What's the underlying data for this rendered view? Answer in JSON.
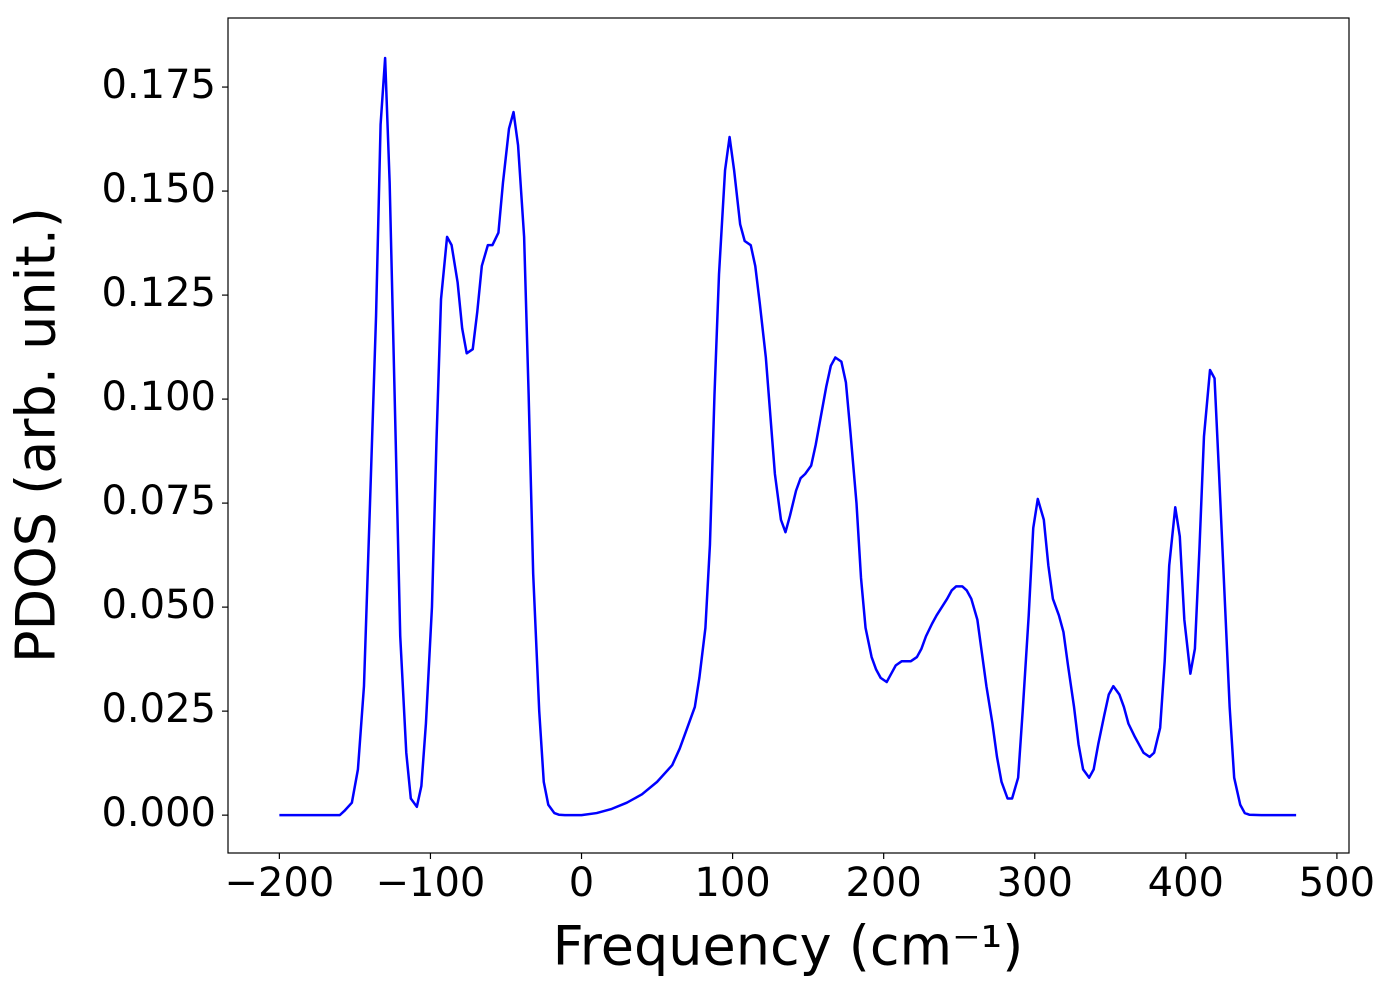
{
  "chart_data": {
    "type": "line",
    "xlabel": "Frequency (cm⁻¹)",
    "ylabel": "PDOS (arb. unit.)",
    "series": [
      {
        "color": "#0000ff",
        "x": [
          -200,
          -190,
          -180,
          -170,
          -160,
          -157,
          -152,
          -148,
          -144,
          -140,
          -136,
          -133,
          -130,
          -127,
          -123,
          -120,
          -116,
          -113,
          -109,
          -106,
          -103,
          -99,
          -96,
          -93,
          -89,
          -86,
          -82,
          -79,
          -76,
          -72,
          -69,
          -66,
          -62,
          -59,
          -55,
          -52,
          -48,
          -45,
          -42,
          -38,
          -35,
          -32,
          -28,
          -25,
          -22,
          -18,
          -15,
          -11,
          0,
          10,
          20,
          30,
          40,
          50,
          60,
          65,
          70,
          75,
          78,
          82,
          85,
          88,
          91,
          95,
          98,
          101,
          105,
          108,
          112,
          115,
          118,
          122,
          125,
          128,
          132,
          135,
          138,
          142,
          145,
          148,
          152,
          155,
          158,
          162,
          165,
          168,
          172,
          175,
          178,
          182,
          185,
          188,
          192,
          195,
          198,
          202,
          205,
          208,
          212,
          215,
          218,
          222,
          225,
          228,
          232,
          235,
          242,
          245,
          248,
          252,
          255,
          258,
          262,
          265,
          268,
          272,
          275,
          278,
          282,
          285,
          289,
          292,
          296,
          299,
          302,
          306,
          309,
          312,
          316,
          319,
          322,
          326,
          329,
          332,
          336,
          339,
          342,
          346,
          349,
          352,
          356,
          359,
          362,
          366,
          369,
          372,
          376,
          379,
          383,
          386,
          389,
          393,
          396,
          399,
          403,
          406,
          409,
          412,
          416,
          419,
          422,
          426,
          429,
          432,
          436,
          439,
          442,
          450,
          460,
          473
        ],
        "values": [
          0,
          0,
          0,
          0,
          0,
          0.001,
          0.003,
          0.011,
          0.031,
          0.075,
          0.12,
          0.166,
          0.182,
          0.152,
          0.09,
          0.043,
          0.015,
          0.004,
          0.002,
          0.007,
          0.022,
          0.05,
          0.09,
          0.124,
          0.139,
          0.137,
          0.128,
          0.117,
          0.111,
          0.112,
          0.121,
          0.132,
          0.137,
          0.137,
          0.14,
          0.152,
          0.165,
          0.169,
          0.161,
          0.139,
          0.101,
          0.058,
          0.025,
          0.008,
          0.0025,
          0.0005,
          0.0001,
          0,
          0,
          0.0005,
          0.0015,
          0.003,
          0.005,
          0.008,
          0.012,
          0.016,
          0.021,
          0.026,
          0.033,
          0.045,
          0.065,
          0.101,
          0.13,
          0.155,
          0.163,
          0.155,
          0.142,
          0.138,
          0.137,
          0.132,
          0.123,
          0.11,
          0.096,
          0.082,
          0.071,
          0.068,
          0.072,
          0.078,
          0.081,
          0.082,
          0.084,
          0.089,
          0.095,
          0.103,
          0.108,
          0.11,
          0.109,
          0.104,
          0.092,
          0.075,
          0.057,
          0.045,
          0.038,
          0.035,
          0.033,
          0.032,
          0.034,
          0.036,
          0.037,
          0.037,
          0.037,
          0.038,
          0.04,
          0.043,
          0.046,
          0.048,
          0.052,
          0.054,
          0.055,
          0.055,
          0.054,
          0.052,
          0.047,
          0.039,
          0.031,
          0.022,
          0.014,
          0.008,
          0.004,
          0.004,
          0.009,
          0.025,
          0.048,
          0.069,
          0.076,
          0.071,
          0.06,
          0.052,
          0.048,
          0.044,
          0.036,
          0.026,
          0.017,
          0.011,
          0.009,
          0.011,
          0.017,
          0.024,
          0.029,
          0.031,
          0.029,
          0.026,
          0.022,
          0.019,
          0.017,
          0.015,
          0.014,
          0.015,
          0.021,
          0.037,
          0.06,
          0.074,
          0.067,
          0.047,
          0.034,
          0.04,
          0.064,
          0.091,
          0.107,
          0.105,
          0.082,
          0.05,
          0.026,
          0.009,
          0.0025,
          0.0005,
          0.0001,
          0,
          0,
          0
        ]
      }
    ],
    "xlim": [
      -234,
      508
    ],
    "ylim": [
      -0.0091,
      0.1916
    ],
    "xticks": [
      {
        "value": -200,
        "label": "−200"
      },
      {
        "value": -100,
        "label": "−100"
      },
      0,
      100,
      200,
      300,
      400,
      500
    ],
    "yticks": [
      {
        "value": 0,
        "label": "0.000"
      },
      {
        "value": 0.025,
        "label": "0.025"
      },
      {
        "value": 0.05,
        "label": "0.050"
      },
      {
        "value": 0.075,
        "label": "0.075"
      },
      {
        "value": 0.1,
        "label": "0.100"
      },
      {
        "value": 0.125,
        "label": "0.125"
      },
      {
        "value": 0.15,
        "label": "0.150"
      },
      {
        "value": 0.175,
        "label": "0.175"
      }
    ]
  }
}
